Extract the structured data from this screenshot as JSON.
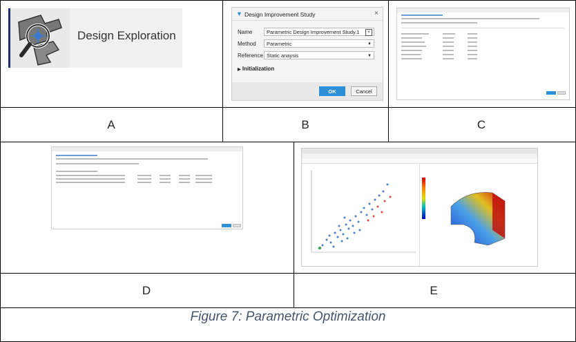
{
  "figure": {
    "caption": "Figure 7: Parametric Optimization",
    "panel_labels": [
      "A",
      "B",
      "C",
      "D",
      "E"
    ]
  },
  "panel_a": {
    "label": "Design Exploration",
    "icon": "design-exploration-icon"
  },
  "panel_b": {
    "title": "Design Improvement Study",
    "close_symbol": "×",
    "fields": [
      {
        "label": "Name",
        "value": "Parametric Design Improvement Study.1"
      },
      {
        "label": "Method",
        "value": "Parametric"
      },
      {
        "label": "Reference",
        "value": "Static anaysis"
      }
    ],
    "section": "Initialization",
    "ok_label": "OK",
    "cancel_label": "Cancel"
  },
  "colors": {
    "accent": "#2d8fd5",
    "caption": "#44546a",
    "icon_border": "#1d2f6f"
  }
}
